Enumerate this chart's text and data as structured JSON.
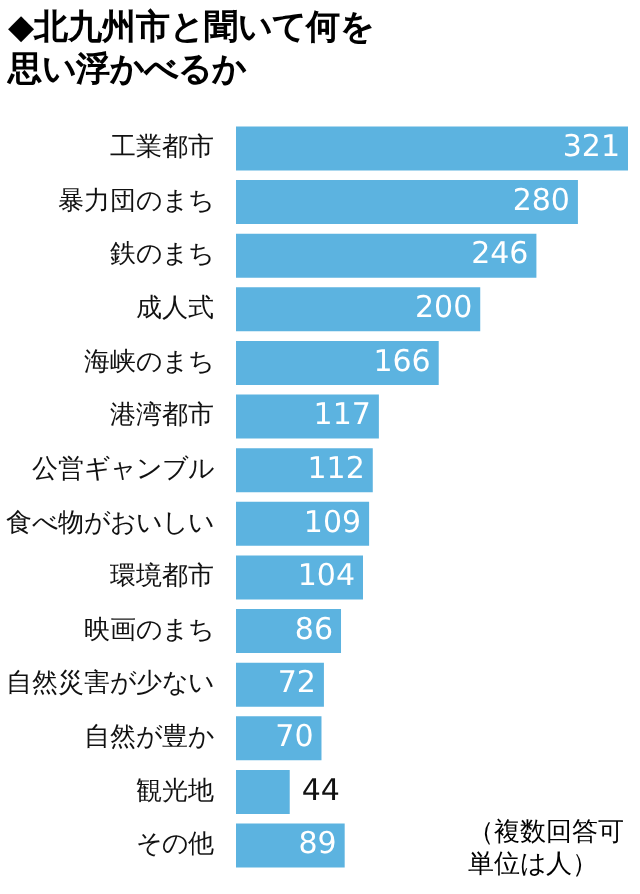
{
  "chart_data": {
    "type": "bar",
    "orientation": "horizontal",
    "title": "◆北九州市と聞いて何を思い浮かべるか",
    "categories": [
      "工業都市",
      "暴力団のまち",
      "鉄のまち",
      "成人式",
      "海峡のまち",
      "港湾都市",
      "公営ギャンブル",
      "食べ物がおいしい",
      "環境都市",
      "映画のまち",
      "自然災害が少ない",
      "自然が豊か",
      "観光地",
      "その他"
    ],
    "values": [
      321,
      280,
      246,
      200,
      166,
      117,
      112,
      109,
      104,
      86,
      72,
      70,
      44,
      89
    ],
    "color": "#5cb3e0",
    "data_labels": true,
    "legend": false,
    "annotations": [
      "（複数回答可単位は人）"
    ]
  }
}
